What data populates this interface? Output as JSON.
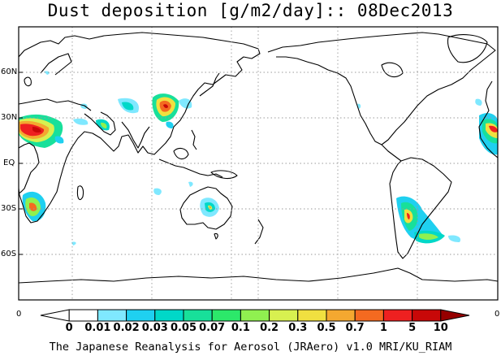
{
  "title": "Dust deposition [g/m2/day]:: 08Dec2013",
  "footer": "The Japanese Reanalysis for Aerosol (JRAero) v1.0 MRI/KU_RIAM",
  "lat_labels": [
    "60N",
    "30N",
    "EQ",
    "30S",
    "60S"
  ],
  "colorbar": {
    "end_left": "0",
    "end_right": "0",
    "labels": [
      "0",
      "0.01",
      "0.02",
      "0.03",
      "0.05",
      "0.07",
      "0.1",
      "0.2",
      "0.3",
      "0.5",
      "0.7",
      "1",
      "5",
      "10"
    ],
    "colors": [
      "#ffffff",
      "#ffffff",
      "#7fe8ff",
      "#1fd0f0",
      "#00d8c8",
      "#18e09a",
      "#2ce86a",
      "#90f050",
      "#d8f050",
      "#f0e040",
      "#f4a830",
      "#f46a20",
      "#ee2020",
      "#c80808",
      "#960000"
    ]
  },
  "map": {
    "projection": "equirectangular, Pacific-centred",
    "grid": "dotted 30° lat/lon",
    "dust_hotspots": [
      "Sahara / Arabia",
      "Taklimakan / Gobi",
      "Southern Africa",
      "Central Australia",
      "Patagonia / Argentina",
      "West Africa (east edge)"
    ]
  }
}
